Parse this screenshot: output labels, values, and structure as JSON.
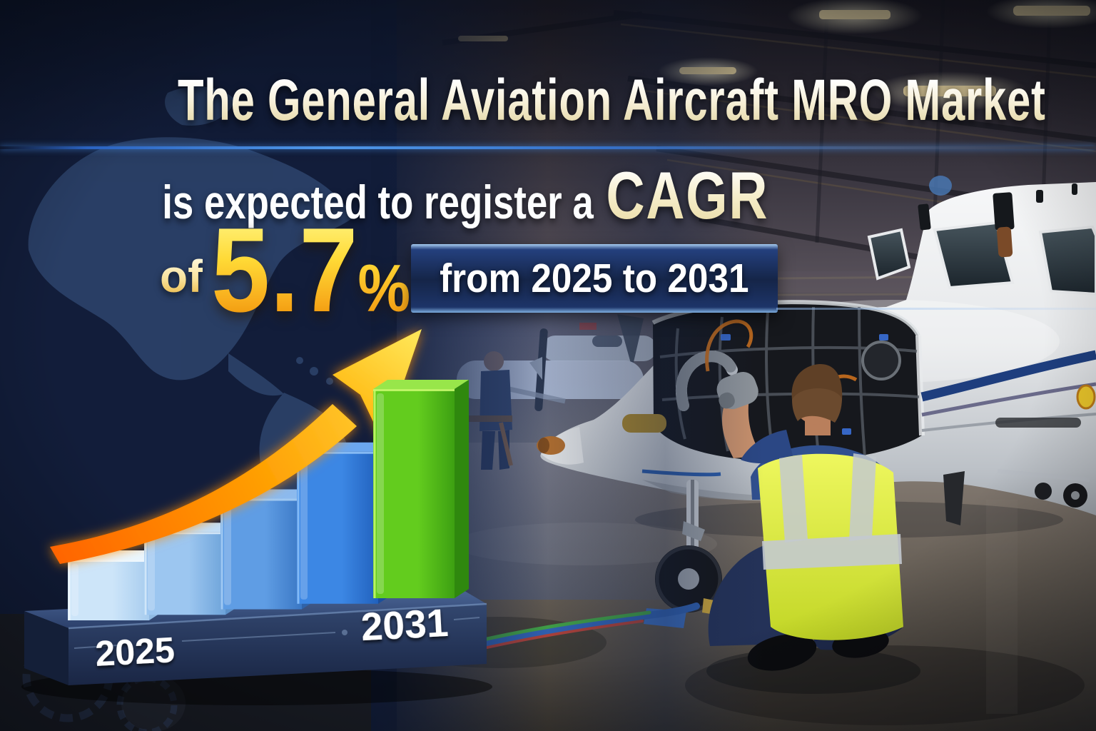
{
  "title": "The General Aviation Aircraft MRO Market",
  "subtitle": {
    "prefix": "is expected to register a",
    "highlight": "CAGR"
  },
  "stat": {
    "prefix": "of",
    "value": "5.7",
    "unit": "%",
    "range": "from 2025 to 2031"
  },
  "chart": {
    "start_label": "2025",
    "end_label": "2031"
  },
  "chart_data": {
    "type": "bar",
    "title": "",
    "xlabel": "",
    "ylabel": "",
    "grid": false,
    "legend": [],
    "categories": [
      "2025",
      "",
      "",
      "",
      "2031"
    ],
    "values": [
      1.0,
      1.36,
      1.82,
      2.5,
      3.45
    ],
    "values_note": "relative bar heights estimated from pixels; no numeric axis is shown in the image",
    "bar_colors": [
      {
        "front": "#cde5f9",
        "front2": "#a7ccee",
        "top": "#eaf6fe",
        "side": "#8fb9e2",
        "edge": "#f4fbff"
      },
      {
        "front": "#9cc6f0",
        "front2": "#6da3d9",
        "top": "#c3dff7",
        "side": "#5b90c8",
        "edge": "#daecfb"
      },
      {
        "front": "#5f9de4",
        "front2": "#3a77c4",
        "top": "#8cbaee",
        "side": "#2f63a9",
        "edge": "#a9d0f5"
      },
      {
        "front": "#3c87e4",
        "front2": "#2161bd",
        "top": "#6ba7ef",
        "side": "#1b4f9c",
        "edge": "#8fc2f8"
      },
      {
        "front": "#63cc1e",
        "front2": "#3da012",
        "top": "#98e64a",
        "side": "#2f880e",
        "edge": "#c8fa6e"
      }
    ],
    "arrow": {
      "start_color": "#ff6a00",
      "end_color": "#ffd83c"
    }
  },
  "colors": {
    "background_navy": "#121d3a",
    "map_blue": "#40608f",
    "divider_blue": "#3f87e0",
    "title_cream": "#f3ecd2",
    "accent_gold": "#ffc422",
    "band_navy": "#152548",
    "platform_navy": "#2b3e66",
    "vest_yellow": "#d9e93e",
    "jet_white": "#e9ebed"
  }
}
